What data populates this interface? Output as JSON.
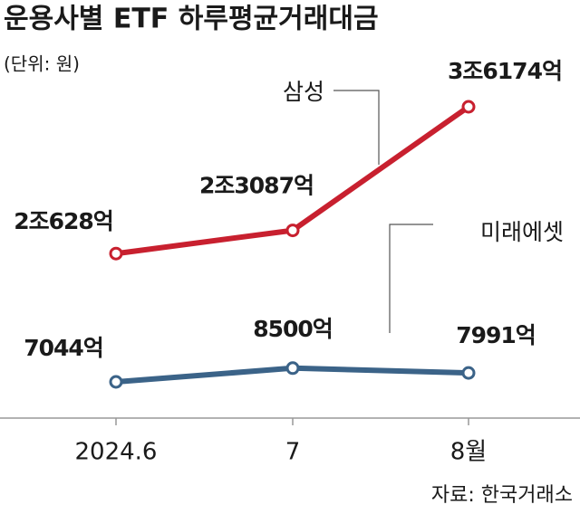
{
  "chart_data": {
    "type": "line",
    "title": "운용사별 ETF 하루평균거래대금",
    "subtitle": "(단위: 원)",
    "source": "자료: 한국거래소",
    "categories": [
      "2024.6",
      "7",
      "8월"
    ],
    "series": [
      {
        "name": "삼성",
        "color": "#c8202f",
        "values": [
          20628,
          23087,
          36174
        ],
        "value_labels": [
          "2조628억",
          "2조3087억",
          "3조6174억"
        ]
      },
      {
        "name": "미래에셋",
        "color": "#3b6388",
        "values": [
          7044,
          8500,
          7991
        ],
        "value_labels": [
          "7044억",
          "8500억",
          "7991억"
        ]
      }
    ]
  }
}
